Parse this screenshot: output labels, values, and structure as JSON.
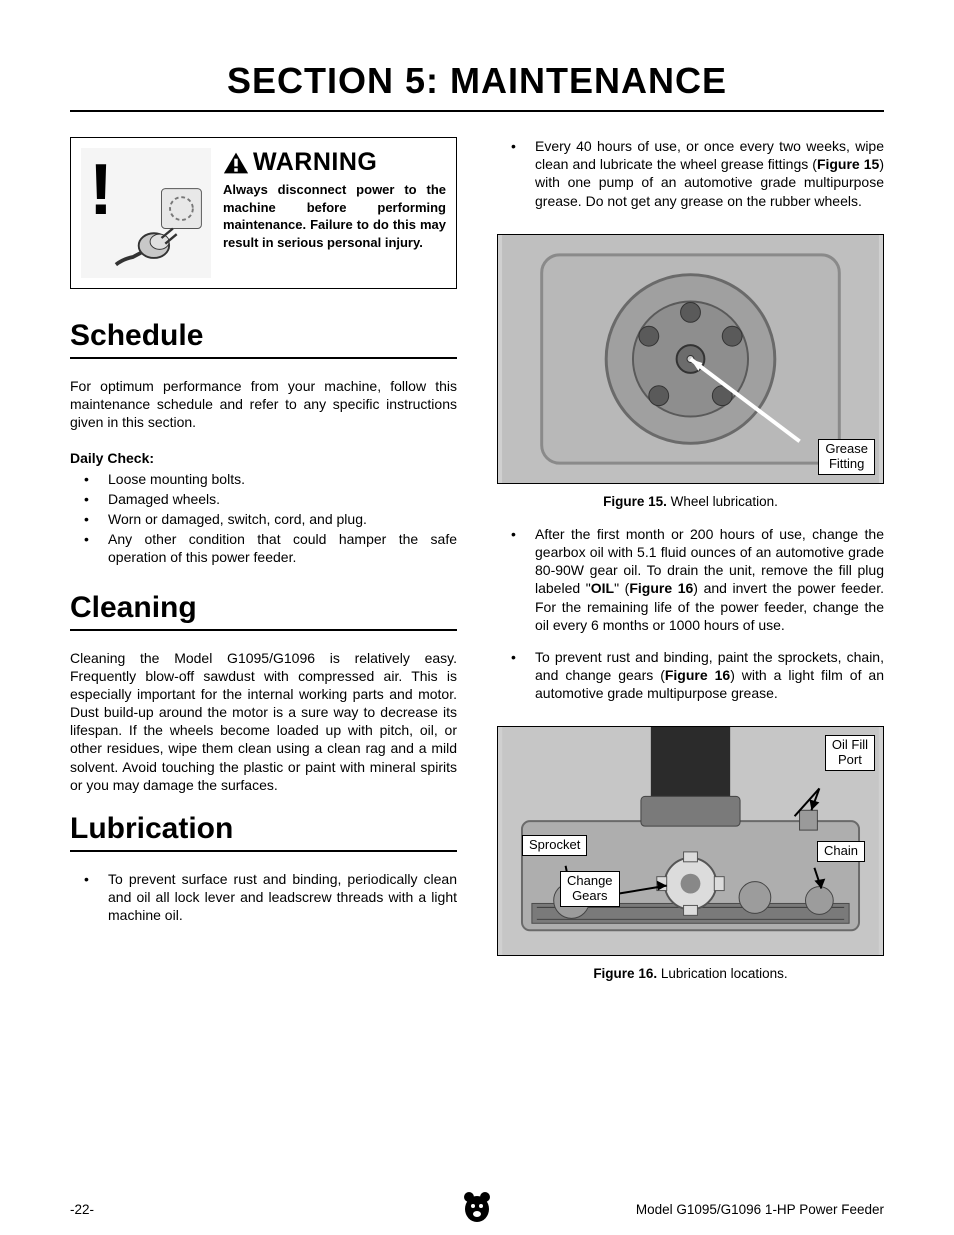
{
  "page": {
    "title": "SECTION 5: MAINTENANCE",
    "pagenum": "-22-",
    "footer_model": "Model G1095/G1096 1-HP Power Feeder"
  },
  "warning": {
    "word": "WARNING",
    "body": "Always disconnect power to the machine before performing maintenance. Failure to do this may result in serious personal injury.",
    "triangle_fill": "#000000",
    "exclaim_color": "#000000",
    "graphic_bg": "#f0f0f0"
  },
  "left": {
    "schedule": {
      "heading": "Schedule",
      "intro": "For optimum performance from your machine, follow this maintenance schedule and refer to any specific instructions given in this section.",
      "daily_label": "Daily Check:",
      "daily_items": [
        "Loose mounting bolts.",
        "Damaged wheels.",
        "Worn or damaged, switch, cord, and plug.",
        "Any other condition that could hamper the safe operation of this power feeder."
      ]
    },
    "cleaning": {
      "heading": "Cleaning",
      "body": "Cleaning the Model G1095/G1096 is relatively easy. Frequently blow-off sawdust with compressed air. This is especially important for the internal working parts and motor. Dust build-up around the motor is a sure way to decrease its lifespan. If the wheels become loaded up with pitch, oil, or other residues, wipe them clean using a clean rag and a mild solvent. Avoid touching the plastic or paint with mineral spirits or you may damage the surfaces."
    },
    "lubrication": {
      "heading": "Lubrication",
      "left_bullet": "To prevent surface rust and binding, periodically clean and oil all lock lever and leadscrew threads with a light machine oil."
    }
  },
  "right": {
    "bullet1_pre": "Every 40 hours of use, or once every two weeks, wipe clean and lubricate the wheel grease fittings (",
    "bullet1_figref": "Figure 15",
    "bullet1_post": ") with one pump of an automotive grade multipurpose grease. Do not get any grease on the rubber wheels.",
    "fig15": {
      "caption_bold": "Figure 15.",
      "caption_rest": " Wheel lubrication.",
      "callout_text": "Grease\nFitting",
      "wheel_color": "#b8b8b8",
      "hub_color": "#888888",
      "bolt_color": "#5a5a5a",
      "arrow_color": "#ffffff"
    },
    "bullet2_a": "After the first month or 200 hours of use, change the gearbox oil with 5.1 fluid ounces of an automotive grade 80-90W gear oil. To drain the unit, remove the fill plug labeled \"",
    "bullet2_oil": "OIL",
    "bullet2_b": "\" (",
    "bullet2_figref": "Figure 16",
    "bullet2_c": ") and invert the power feeder. For the remaining life of the power feeder, change the oil every 6 months or 1000 hours of use.",
    "bullet3_a": "To prevent rust and binding, paint the sprockets, chain, and change gears (",
    "bullet3_figref": "Figure 16",
    "bullet3_b": ") with a light film of an automotive grade multipurpose grease.",
    "fig16": {
      "caption_bold": "Figure 16.",
      "caption_rest": " Lubrication locations.",
      "labels": {
        "oil_fill": "Oil Fill\nPort",
        "sprocket": "Sprocket",
        "chain": "Chain",
        "change_gears": "Change\nGears"
      },
      "body_color": "#aeaeae",
      "motor_color": "#2b2b2b",
      "gear_color": "#dcdcdc",
      "chain_color": "#7a7a7a",
      "arrow_color": "#000000"
    }
  },
  "style": {
    "text_color": "#000000",
    "page_bg": "#ffffff",
    "border_color": "#000000",
    "font_family": "Arial, Helvetica, sans-serif",
    "title_size_pt": 27,
    "h2_size_pt": 22,
    "body_size_pt": 10.5
  }
}
